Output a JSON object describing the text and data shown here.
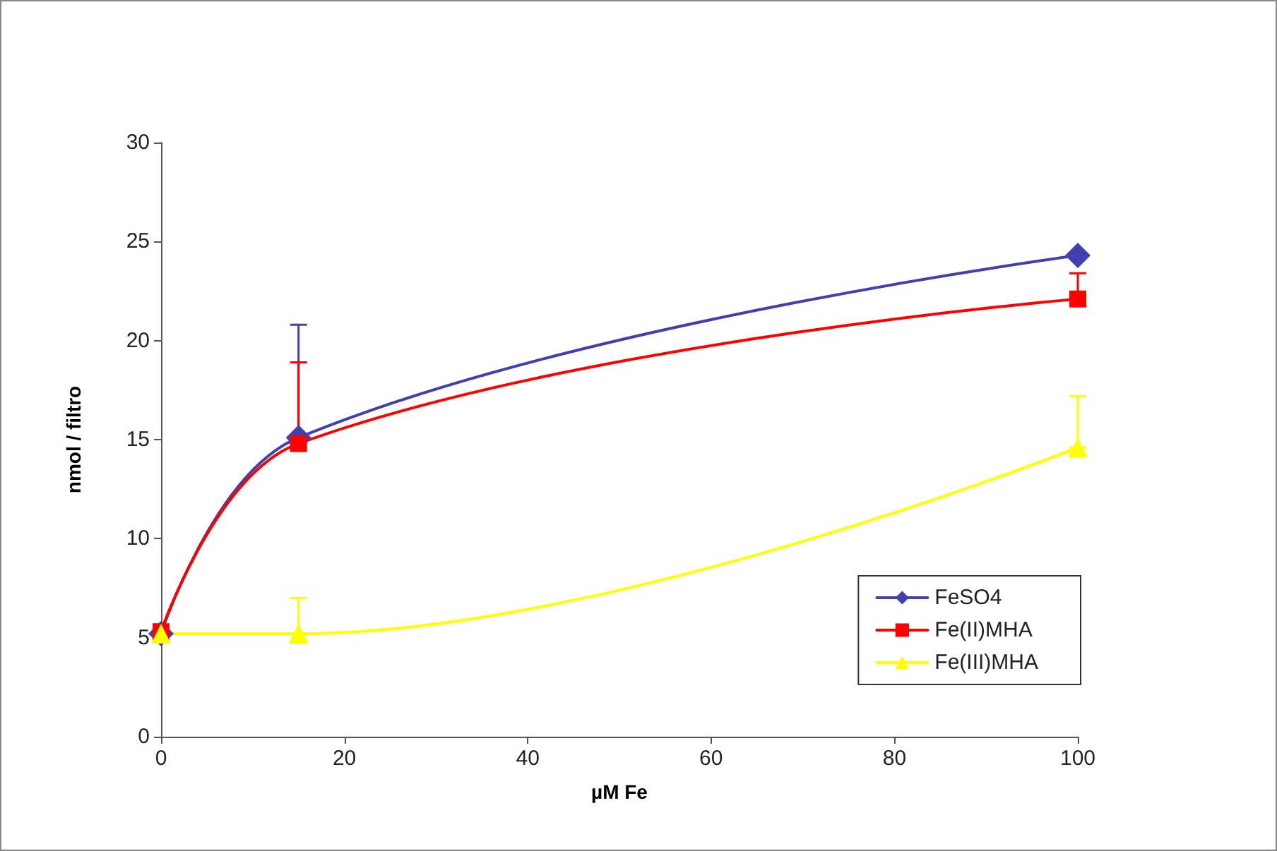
{
  "chart_data": {
    "type": "line",
    "xlabel": "µM Fe",
    "ylabel": "nmol / filtro",
    "x": [
      0,
      15,
      100
    ],
    "xlim": [
      0,
      100
    ],
    "xticks": [
      0,
      20,
      40,
      60,
      80,
      100
    ],
    "ylim": [
      0,
      30
    ],
    "yticks": [
      0,
      5,
      10,
      15,
      20,
      25,
      30
    ],
    "grid": false,
    "legend": "bottom right",
    "series": [
      {
        "name": "FeSO4",
        "color": "#4040b0",
        "marker": "diamond",
        "values": [
          5.2,
          15.1,
          24.3
        ],
        "errors": [
          null,
          [
            15.1,
            20.8
          ],
          null
        ]
      },
      {
        "name": "Fe(II)MHA",
        "color": "#ff0000",
        "marker": "square",
        "values": [
          5.3,
          14.8,
          22.1
        ],
        "errors": [
          null,
          [
            14.8,
            18.9
          ],
          [
            22.1,
            23.4
          ]
        ]
      },
      {
        "name": "Fe(III)MHA",
        "color": "#ffff00",
        "marker": "triangle",
        "values": [
          5.2,
          5.2,
          14.6
        ],
        "errors": [
          null,
          [
            5.2,
            7.0
          ],
          [
            14.6,
            17.2
          ]
        ]
      }
    ]
  }
}
